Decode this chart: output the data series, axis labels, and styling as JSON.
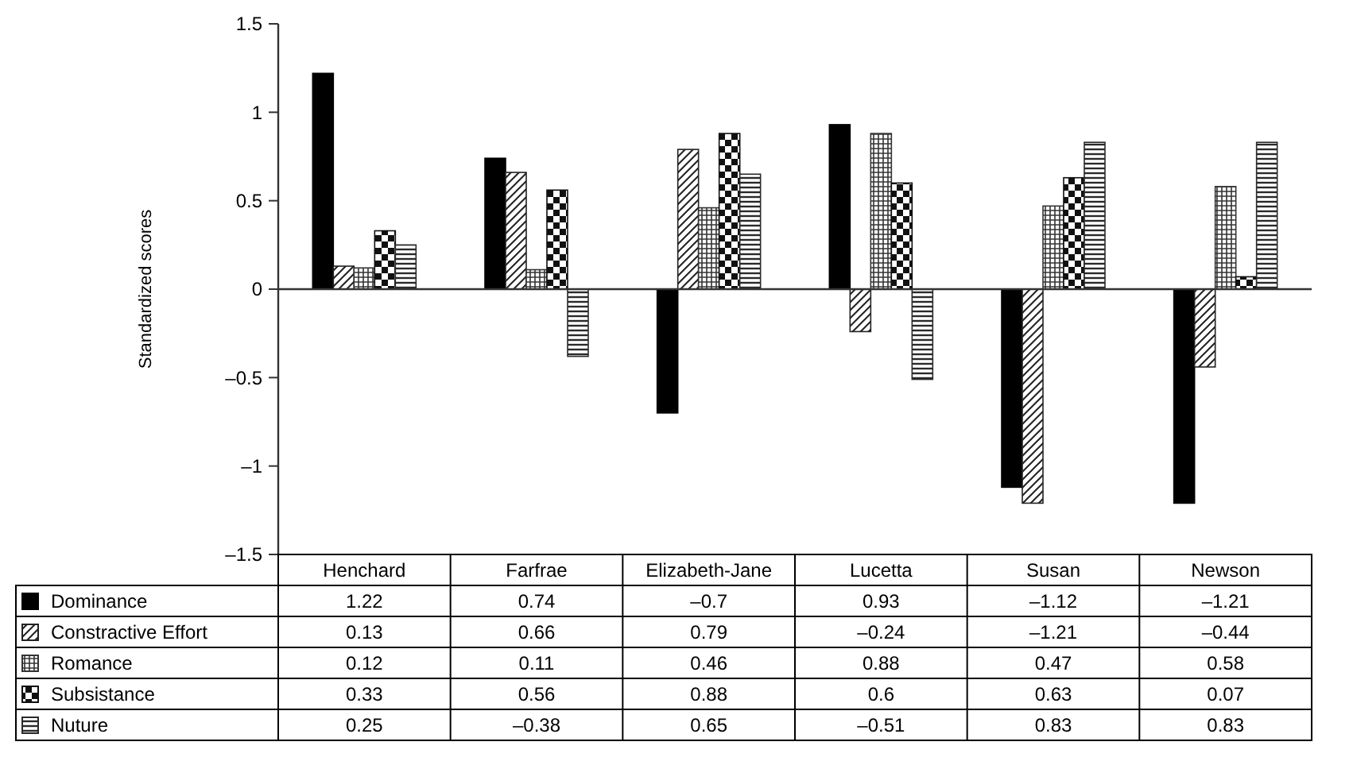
{
  "chart_data": {
    "type": "bar",
    "ylabel": "Standardized scores",
    "legend": "bottom left",
    "categories": [
      "Henchard",
      "Farfrae",
      "Elizabeth-Jane",
      "Lucetta",
      "Susan",
      "Newson"
    ],
    "ylim": [
      -1.5,
      1.5
    ],
    "yticks": [
      {
        "value": -1.5,
        "label": "–1.5"
      },
      {
        "value": -1,
        "label": "–1"
      },
      {
        "value": -0.5,
        "label": "–0.5"
      },
      0,
      0.5,
      1,
      1.5
    ],
    "series": [
      {
        "name": "Dominance",
        "color": "#000000",
        "values": [
          1.22,
          0.74,
          -0.7,
          0.93,
          -1.12,
          -1.21
        ],
        "value_labels": [
          "1.22",
          "0.74",
          "–0.7",
          "0.93",
          "–1.12",
          "–1.21"
        ]
      },
      {
        "name": "Constractive Effort",
        "color": "#222222",
        "values": [
          0.13,
          0.66,
          0.79,
          -0.24,
          -1.21,
          -0.44
        ],
        "value_labels": [
          "0.13",
          "0.66",
          "0.79",
          "–0.24",
          "–1.21",
          "–0.44"
        ]
      },
      {
        "name": "Romance",
        "color": "#333333",
        "values": [
          0.12,
          0.11,
          0.46,
          0.88,
          0.47,
          0.58
        ],
        "value_labels": [
          "0.12",
          "0.11",
          "0.46",
          "0.88",
          "0.47",
          "0.58"
        ]
      },
      {
        "name": "Subsistance",
        "color": "#111111",
        "values": [
          0.33,
          0.56,
          0.88,
          0.6,
          0.63,
          0.07
        ],
        "value_labels": [
          "0.33",
          "0.56",
          "0.88",
          "0.6",
          "0.63",
          "0.07"
        ]
      },
      {
        "name": "Nuture",
        "color": "#2a2a2a",
        "values": [
          0.25,
          -0.38,
          0.65,
          -0.51,
          0.83,
          0.83
        ],
        "value_labels": [
          "0.25",
          "–0.38",
          "0.65",
          "–0.51",
          "0.83",
          "0.83"
        ]
      }
    ]
  }
}
